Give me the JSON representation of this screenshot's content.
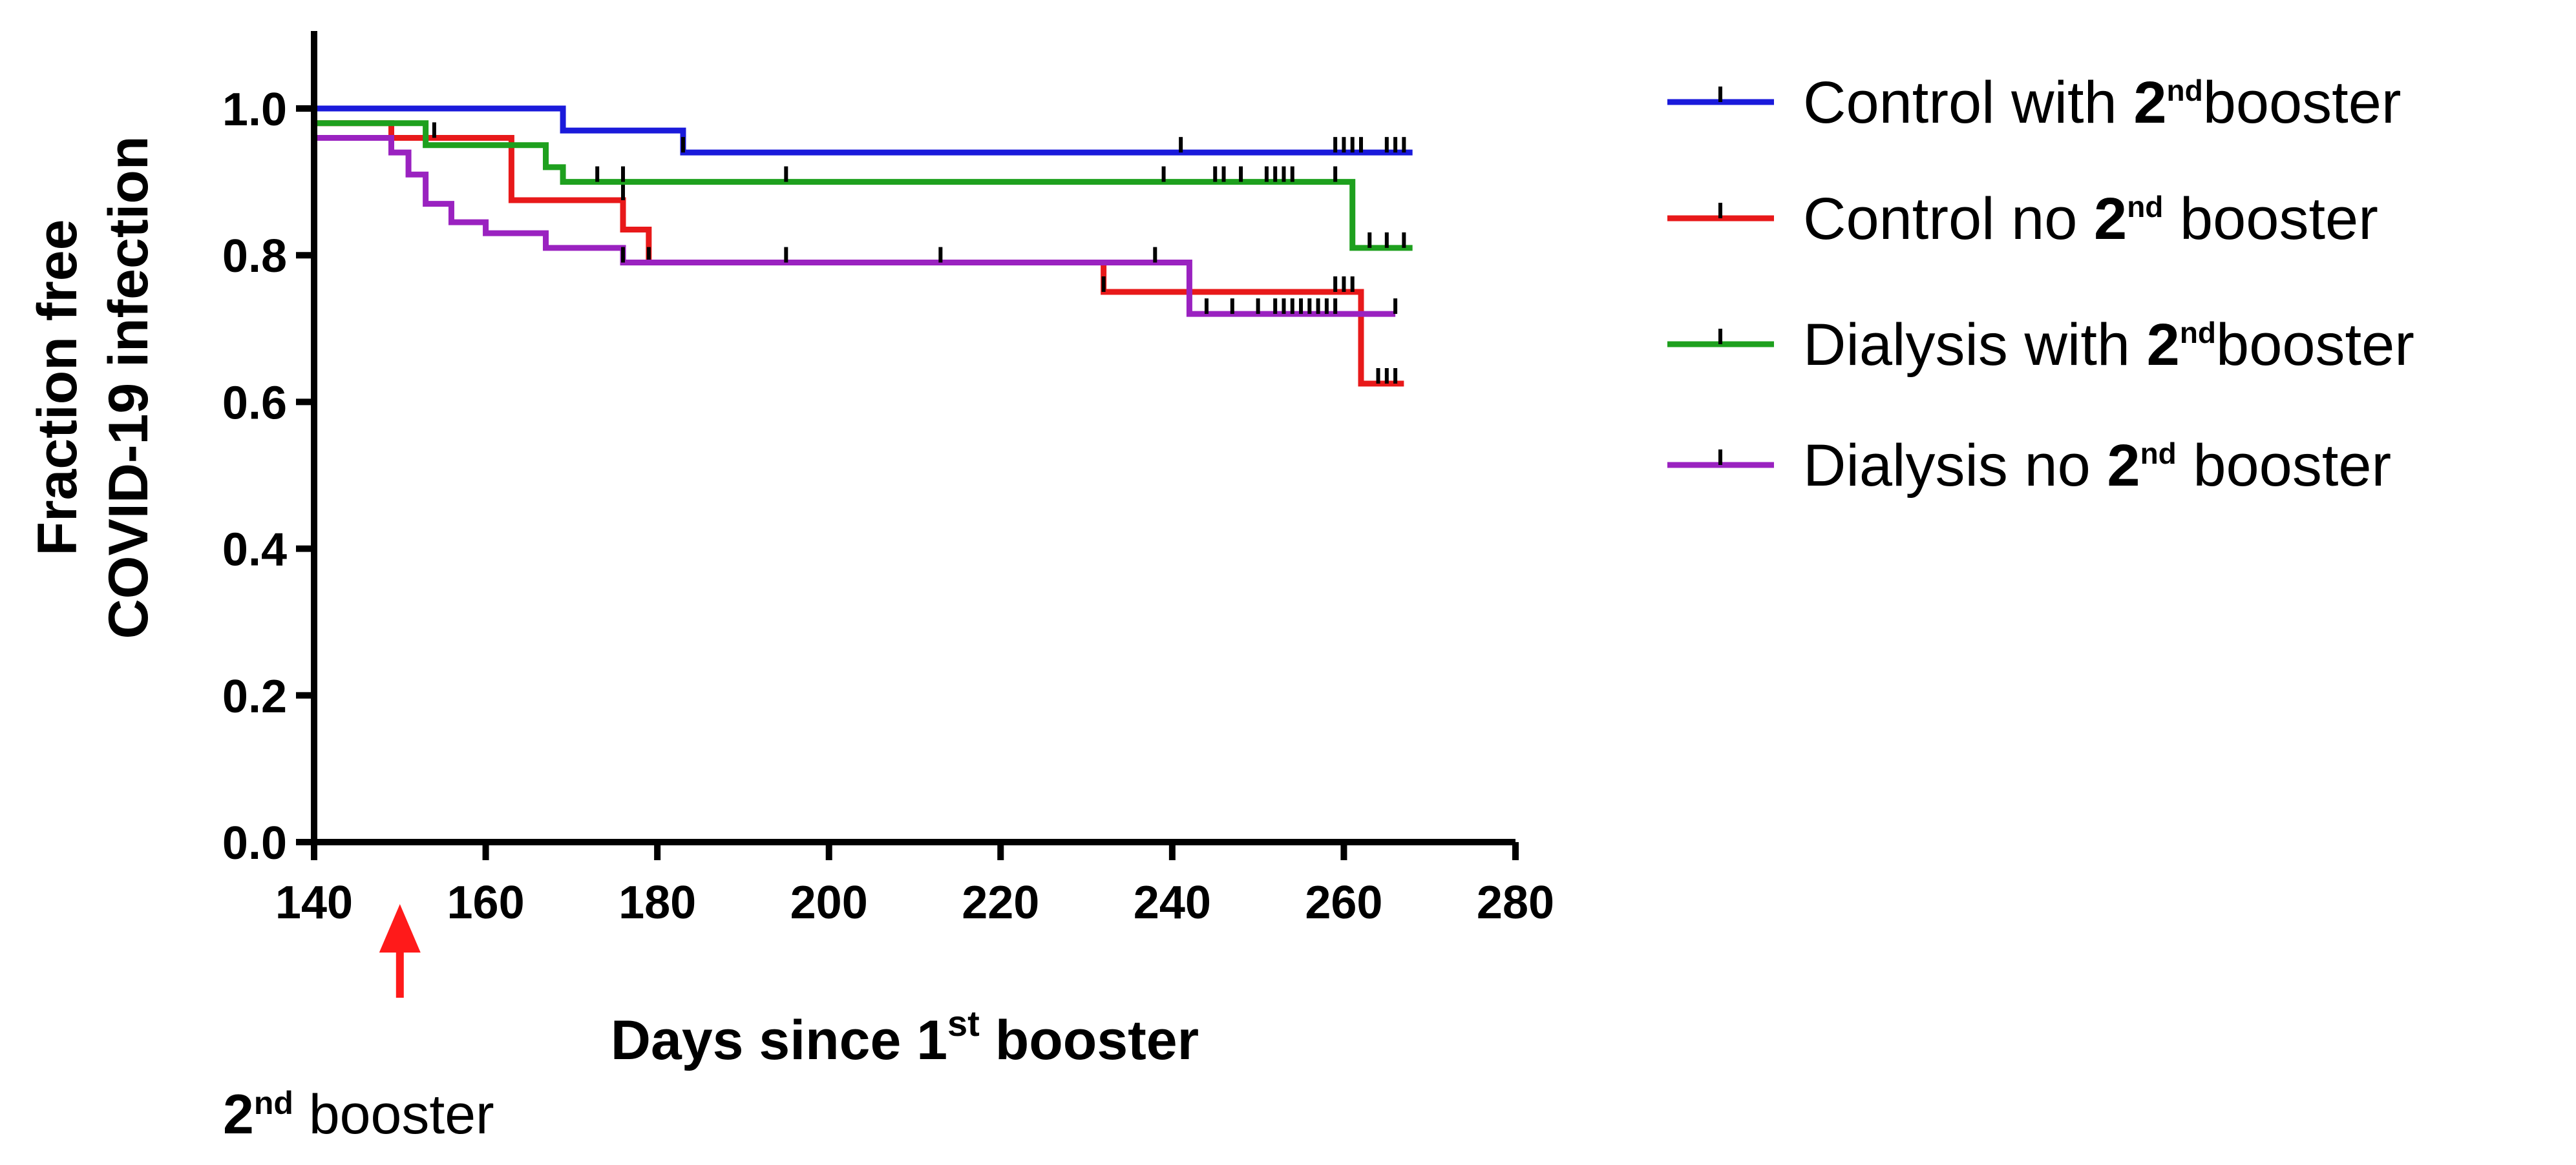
{
  "chart_data": {
    "type": "line",
    "ylabel_line1": "Fraction free",
    "ylabel_line2": "COVID-19 infection",
    "xlabel_main": "Days since 1",
    "xlabel_sup": "st",
    "xlabel_tail": " booster",
    "xlim": [
      140,
      280
    ],
    "ylim": [
      0.0,
      1.1
    ],
    "x_ticks": [
      "140",
      "160",
      "180",
      "200",
      "220",
      "240",
      "260",
      "280"
    ],
    "x_tick_values": [
      140,
      160,
      180,
      200,
      220,
      240,
      260,
      280
    ],
    "y_ticks": [
      "0.0",
      "0.2",
      "0.4",
      "0.6",
      "0.8",
      "1.0"
    ],
    "y_tick_values": [
      0.0,
      0.2,
      0.4,
      0.6,
      0.8,
      1.0
    ],
    "grid": false,
    "legend_position": "right",
    "series": [
      {
        "name_pre": "Control with ",
        "name_num": "2",
        "name_sup": "nd",
        "name_post": "booster",
        "color": "#1a1adb",
        "steps": [
          [
            140,
            1.0
          ],
          [
            169,
            0.97
          ],
          [
            183,
            0.94
          ],
          [
            268,
            0.94
          ]
        ],
        "censored": [
          [
            183,
            0.94
          ],
          [
            241,
            0.94
          ],
          [
            259,
            0.94
          ],
          [
            260,
            0.94
          ],
          [
            261,
            0.94
          ],
          [
            262,
            0.94
          ],
          [
            265,
            0.94
          ],
          [
            266,
            0.94
          ],
          [
            267,
            0.94
          ]
        ]
      },
      {
        "name_pre": "Control no ",
        "name_num": "2",
        "name_sup": "nd",
        "name_post": " booster",
        "color": "#e8191a",
        "steps": [
          [
            140,
            0.98
          ],
          [
            149,
            0.96
          ],
          [
            163,
            0.875
          ],
          [
            176,
            0.835
          ],
          [
            179,
            0.79
          ],
          [
            232,
            0.75
          ],
          [
            262,
            0.625
          ],
          [
            267,
            0.625
          ]
        ],
        "censored": [
          [
            154,
            0.96
          ],
          [
            176,
            0.875
          ],
          [
            179,
            0.79
          ],
          [
            232,
            0.75
          ],
          [
            259,
            0.75
          ],
          [
            260,
            0.75
          ],
          [
            261,
            0.75
          ],
          [
            264,
            0.625
          ],
          [
            265,
            0.625
          ],
          [
            266,
            0.625
          ]
        ]
      },
      {
        "name_pre": "Dialysis with ",
        "name_num": "2",
        "name_sup": "nd",
        "name_post": "booster",
        "color": "#1ea01e",
        "steps": [
          [
            140,
            0.98
          ],
          [
            153,
            0.95
          ],
          [
            167,
            0.92
          ],
          [
            169,
            0.9
          ],
          [
            261,
            0.81
          ],
          [
            268,
            0.81
          ]
        ],
        "censored": [
          [
            173,
            0.9
          ],
          [
            176,
            0.9
          ],
          [
            195,
            0.9
          ],
          [
            239,
            0.9
          ],
          [
            245,
            0.9
          ],
          [
            246,
            0.9
          ],
          [
            248,
            0.9
          ],
          [
            251,
            0.9
          ],
          [
            252,
            0.9
          ],
          [
            253,
            0.9
          ],
          [
            254,
            0.9
          ],
          [
            259,
            0.9
          ],
          [
            263,
            0.81
          ],
          [
            265,
            0.81
          ],
          [
            267,
            0.81
          ]
        ]
      },
      {
        "name_pre": "Dialysis no ",
        "name_num": "2",
        "name_sup": "nd",
        "name_post": " booster",
        "color": "#9a22c0",
        "steps": [
          [
            140,
            0.96
          ],
          [
            149,
            0.94
          ],
          [
            151,
            0.91
          ],
          [
            153,
            0.87
          ],
          [
            156,
            0.845
          ],
          [
            160,
            0.83
          ],
          [
            167,
            0.81
          ],
          [
            176,
            0.79
          ],
          [
            239,
            0.79
          ],
          [
            242,
            0.72
          ],
          [
            266,
            0.72
          ]
        ],
        "censored": [
          [
            176,
            0.79
          ],
          [
            195,
            0.79
          ],
          [
            213,
            0.79
          ],
          [
            238,
            0.79
          ],
          [
            244,
            0.72
          ],
          [
            247,
            0.72
          ],
          [
            250,
            0.72
          ],
          [
            252,
            0.72
          ],
          [
            253,
            0.72
          ],
          [
            254,
            0.72
          ],
          [
            255,
            0.72
          ],
          [
            256,
            0.72
          ],
          [
            257,
            0.72
          ],
          [
            258,
            0.72
          ],
          [
            259,
            0.72
          ],
          [
            266,
            0.72
          ]
        ]
      }
    ],
    "annotation": {
      "num": "2",
      "sup": "nd",
      "text": " booster",
      "x": 150,
      "color": "#ff1a1a"
    }
  }
}
